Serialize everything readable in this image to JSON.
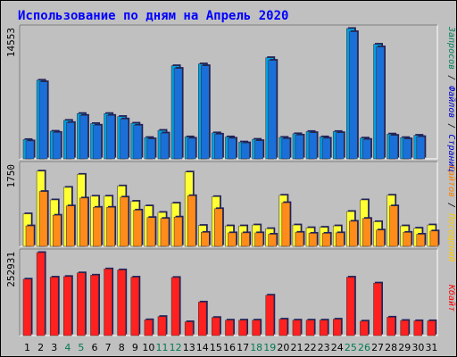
{
  "chart_data": {
    "type": "bar",
    "title": "Использование по дням на Апрель 2020",
    "categories": [
      "1",
      "2",
      "3",
      "4",
      "5",
      "6",
      "7",
      "8",
      "9",
      "10",
      "11",
      "12",
      "13",
      "14",
      "15",
      "16",
      "17",
      "18",
      "19",
      "20",
      "21",
      "22",
      "23",
      "24",
      "25",
      "26",
      "27",
      "28",
      "29",
      "30",
      "31"
    ],
    "weekend_days": [
      "4",
      "5",
      "11",
      "12",
      "18",
      "19",
      "25",
      "26"
    ],
    "panels": [
      {
        "id": "requests",
        "axis_label": "14553",
        "ylim": [
          0,
          14553
        ],
        "right_labels": [
          {
            "text": "Запросов",
            "color": "#00805c"
          },
          {
            "text": " / ",
            "color": "#000000"
          },
          {
            "text": "Файлов",
            "color": "#0000cc"
          },
          {
            "text": " / ",
            "color": "#000000"
          },
          {
            "text": "Страниц",
            "color": "#0000cc"
          }
        ],
        "series": [
          {
            "color": "#00a0e0",
            "values": [
              2150,
              8780,
              3080,
              4300,
              5060,
              3940,
              5060,
              4730,
              3980,
              2380,
              3180,
              10400,
              2450,
              10600,
              2900,
              2450,
              1880,
              2180,
              11300,
              2400,
              2800,
              3050,
              2450,
              3050,
              14553,
              2320,
              12800,
              2770,
              2370,
              2630,
              0
            ]
          },
          {
            "color": "#1b6fd8",
            "values": [
              2000,
              8600,
              2950,
              4050,
              4850,
              3760,
              4850,
              4450,
              3750,
              2230,
              2880,
              10100,
              2300,
              10400,
              2750,
              2300,
              1780,
              2030,
              11000,
              2250,
              2650,
              2920,
              2300,
              2920,
              14200,
              2170,
              12500,
              2620,
              2230,
              2480,
              0
            ]
          }
        ]
      },
      {
        "id": "visits",
        "axis_label": "1750",
        "ylim": [
          0,
          1750
        ],
        "right_labels": [
          {
            "text": "Сайтов",
            "color": "#ff8000"
          },
          {
            "text": " / ",
            "color": "#000000"
          },
          {
            "text": "Посещений",
            "color": "#ffcc00"
          }
        ],
        "series": [
          {
            "color": "#ffff33",
            "values": [
              700,
              1620,
              1000,
              1270,
              1550,
              1080,
              1080,
              1300,
              970,
              870,
              730,
              930,
              1600,
              450,
              1070,
              440,
              440,
              460,
              380,
              1100,
              460,
              400,
              410,
              440,
              750,
              1000,
              530,
              1100,
              440,
              390,
              460
            ]
          },
          {
            "color": "#ff8c1a",
            "values": [
              440,
              1180,
              670,
              870,
              1040,
              840,
              840,
              1060,
              780,
              620,
              600,
              630,
              1090,
              300,
              810,
              290,
              290,
              290,
              260,
              940,
              300,
              280,
              280,
              290,
              540,
              600,
              350,
              870,
              300,
              260,
              330
            ]
          }
        ]
      },
      {
        "id": "traffic",
        "axis_label": "252931",
        "ylim": [
          0,
          252931
        ],
        "right_labels": [
          {
            "text": "Кбайт",
            "color": "#ff0000"
          }
        ],
        "series": [
          {
            "color": "#ff2020",
            "values": [
              172000,
              252931,
              178000,
              180000,
              191000,
              184000,
              203000,
              200000,
              178000,
              48000,
              58000,
              177000,
              42000,
              102000,
              55000,
              47000,
              47000,
              47000,
              123000,
              50000,
              47000,
              47000,
              47000,
              50000,
              178000,
              44000,
              160000,
              56000,
              46000,
              45000,
              45000
            ]
          }
        ]
      }
    ]
  }
}
